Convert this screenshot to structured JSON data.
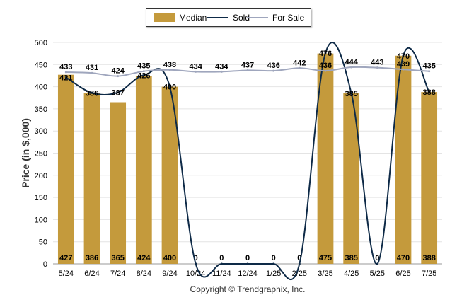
{
  "chart_data": {
    "type": "bar",
    "ylabel": "Price (in $,000)",
    "ylim": [
      0,
      500
    ],
    "yticks": [
      0,
      50,
      100,
      150,
      200,
      250,
      300,
      350,
      400,
      450,
      500
    ],
    "grid": true,
    "legend_placement": "top-center",
    "categories": [
      "5/24",
      "6/24",
      "7/24",
      "8/24",
      "9/24",
      "10/24",
      "11/24",
      "12/24",
      "1/25",
      "2/25",
      "3/25",
      "4/25",
      "5/25",
      "6/25",
      "7/25"
    ],
    "series": [
      {
        "name": "Median",
        "kind": "bar",
        "color": "#c49a3c",
        "values": [
          427,
          386,
          365,
          424,
          400,
          0,
          0,
          0,
          0,
          0,
          475,
          385,
          0,
          470,
          388
        ],
        "labels": [
          "427",
          "386",
          "365",
          "424",
          "400",
          "0",
          "0",
          "0",
          "0",
          "0",
          "475",
          "385",
          "0",
          "470",
          "388"
        ]
      },
      {
        "name": "Sold",
        "kind": "line",
        "color": "#0e2a47",
        "values": [
          421,
          386,
          387,
          426,
          400,
          0,
          0,
          0,
          0,
          0,
          476,
          385,
          0,
          470,
          388
        ],
        "labels": [
          "421",
          "386",
          "387",
          "426",
          "400",
          "",
          "",
          "",
          "",
          "",
          "476",
          "385",
          "",
          "470",
          "388"
        ]
      },
      {
        "name": "For Sale",
        "kind": "line",
        "color": "#9fa6bd",
        "values": [
          433,
          431,
          424,
          435,
          438,
          434,
          434,
          437,
          436,
          442,
          436,
          444,
          443,
          439,
          435
        ],
        "labels": [
          "433",
          "431",
          "424",
          "435",
          "438",
          "434",
          "434",
          "437",
          "436",
          "442",
          "436",
          "444",
          "443",
          "439",
          "435"
        ]
      }
    ]
  },
  "footer": {
    "copyright": "Copyright © Trendgraphix, Inc."
  }
}
